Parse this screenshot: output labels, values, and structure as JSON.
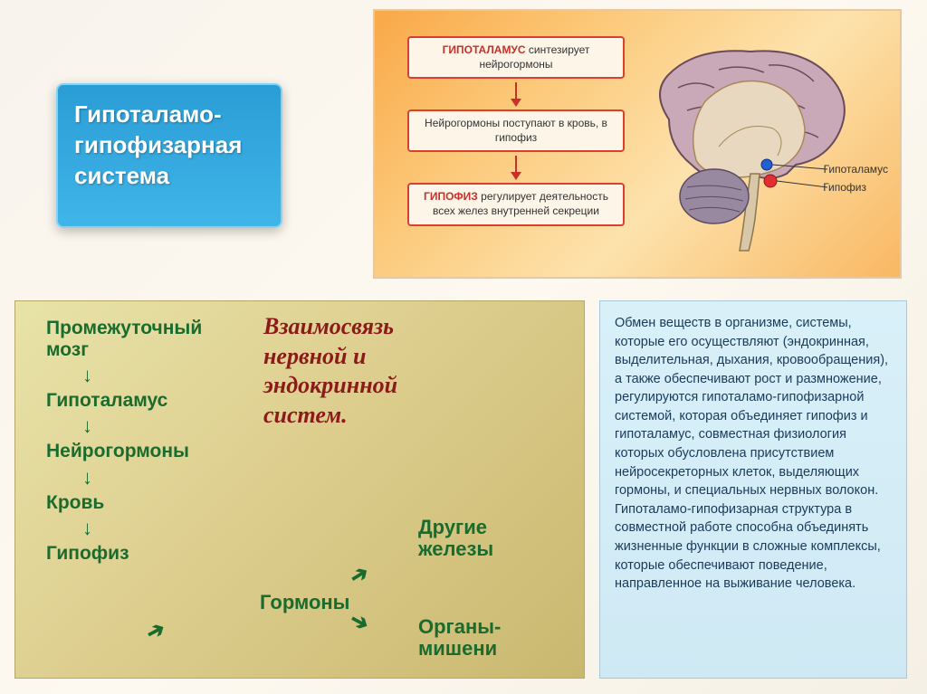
{
  "title": "Гипоталамо-гипофизарная система",
  "topDiagram": {
    "box1_red": "ГИПОТАЛАМУС",
    "box1_tail": " синтезирует нейрогормоны",
    "box2": "Нейрогормоны поступают в кровь, в гипофиз",
    "box3_red": "ГИПОФИЗ",
    "box3_tail": " регулирует деятельность всех желез внутренней секреции",
    "brainColors": {
      "cortex": "#c9a8b8",
      "cortexStroke": "#6b4a5a",
      "inner": "#e8d8c0",
      "innerStroke": "#a88858",
      "cerebellum": "#9888a0",
      "stem": "#d8c8a8",
      "hypothalamus_dot": "#e03030",
      "pituitary_dot": "#2060d0"
    },
    "label_hypothalamus": "Гипоталамус",
    "label_pituitary": "Гипофиз"
  },
  "bottomLeft": {
    "title": "Взаимосвязь нервной и эндокринной систем.",
    "chain": [
      "Промежуточный мозг",
      "Гипоталамус",
      "Нейрогормоны",
      "Кровь",
      "Гипофиз"
    ],
    "branch_hormones": "Гормоны",
    "branch_other": "Другие железы",
    "branch_targets": "Органы-мишени"
  },
  "bottomRight": {
    "text": "Обмен веществ в организме, системы, которые его осуществляют (эндокринная, выделительная, дыхания, кровообращения), а также обеспечивают рост и размножение, регулируются гипоталамо-гипофизарной системой, которая объединяет гипофиз и гипоталамус, совместная физиология которых обусловлена присутствием нейросекреторных клеток, выделяющих гормоны, и специальных нервных волокон. Гипоталамо-гипофизарная структура в совместной работе способна объединять жизненные функции в сложные комплексы, которые обеспечивают поведение, направленное на выживание человека."
  },
  "colors": {
    "title_bg_top": "#2b9dd6",
    "title_bg_bottom": "#3fb5e8",
    "title_border": "#88d4f0",
    "flow_border": "#d94030",
    "flow_red": "#c8302a",
    "green": "#1a6b2e",
    "maroon": "#8c1a1a"
  }
}
